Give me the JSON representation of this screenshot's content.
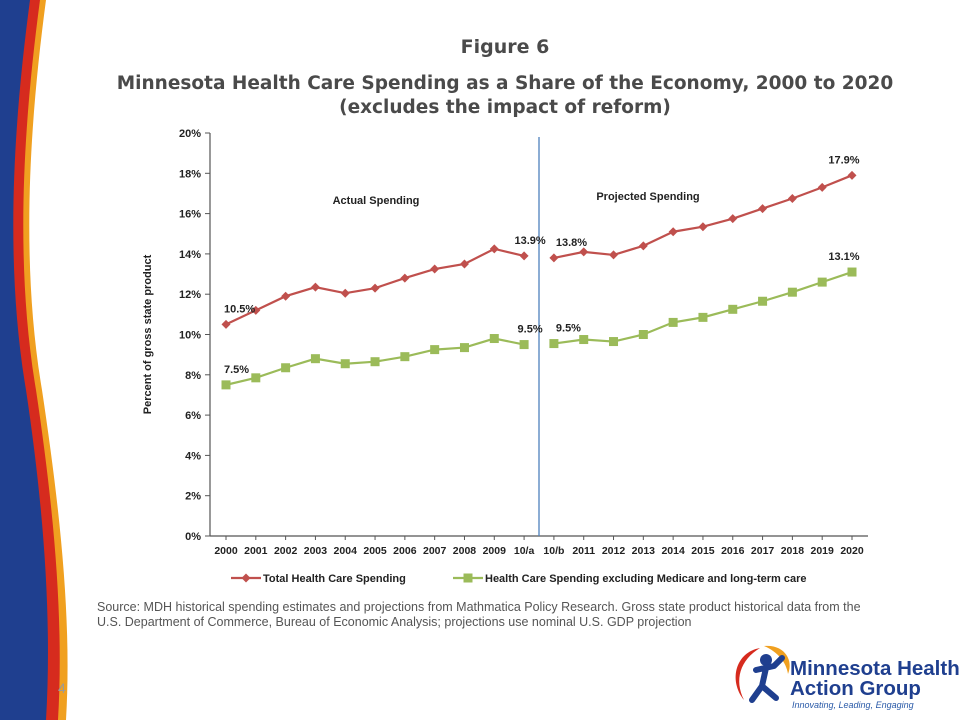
{
  "figure_label": "Figure 6",
  "title_line1": "Minnesota Health Care Spending as a Share of the Economy, 2000 to 2020",
  "title_line2": "(excludes the impact of reform)",
  "source_text": "Source: MDH historical spending estimates and projections from Mathmatica Policy Research. Gross state product historical data from the U.S. Department of Commerce, Bureau of Economic Analysis; projections use nominal U.S. GDP projection",
  "page_number": "4",
  "logo": {
    "line1": "Minnesota Health",
    "line2": "Action Group",
    "tagline": "Innovating, Leading, Engaging"
  },
  "colors": {
    "red_series": "#c0504d",
    "green_series": "#9bbb59",
    "divider": "#4f81bd",
    "sidebar_blue": "#1f3f8f",
    "sidebar_red": "#d62b1e",
    "sidebar_orange": "#f0a020"
  },
  "chart_data": {
    "type": "line",
    "ylabel": "Percent of gross state product",
    "ylim": [
      0,
      20
    ],
    "y_ticks": [
      "0%",
      "2%",
      "4%",
      "6%",
      "8%",
      "10%",
      "12%",
      "14%",
      "16%",
      "18%",
      "20%"
    ],
    "categories": [
      "2000",
      "2001",
      "2002",
      "2003",
      "2004",
      "2005",
      "2006",
      "2007",
      "2008",
      "2009",
      "10/a",
      "10/b",
      "2011",
      "2012",
      "2013",
      "2014",
      "2015",
      "2016",
      "2017",
      "2018",
      "2019",
      "2020"
    ],
    "divider_after_category": "10/a",
    "region_labels": [
      "Actual Spending",
      "Projected Spending"
    ],
    "legend_position": "bottom",
    "series": [
      {
        "name": "Total Health Care Spending",
        "color": "#c0504d",
        "marker": "diamond",
        "values": [
          10.5,
          11.2,
          11.9,
          12.35,
          12.05,
          12.3,
          12.8,
          13.25,
          13.5,
          14.25,
          13.9,
          13.8,
          14.1,
          13.95,
          14.4,
          15.1,
          15.35,
          15.75,
          16.25,
          16.75,
          17.3,
          17.9
        ],
        "data_labels": {
          "0": "10.5%",
          "10": "13.9%",
          "11": "13.8%",
          "21": "17.9%"
        }
      },
      {
        "name": "Health Care Spending excluding Medicare and long-term care",
        "color": "#9bbb59",
        "marker": "square",
        "values": [
          7.5,
          7.85,
          8.35,
          8.8,
          8.55,
          8.65,
          8.9,
          9.25,
          9.35,
          9.8,
          9.5,
          9.55,
          9.75,
          9.65,
          10.0,
          10.6,
          10.85,
          11.25,
          11.65,
          12.1,
          12.6,
          13.1
        ],
        "data_labels": {
          "0": "7.5%",
          "10": "9.5%",
          "11": "9.5%",
          "21": "13.1%"
        }
      }
    ]
  }
}
